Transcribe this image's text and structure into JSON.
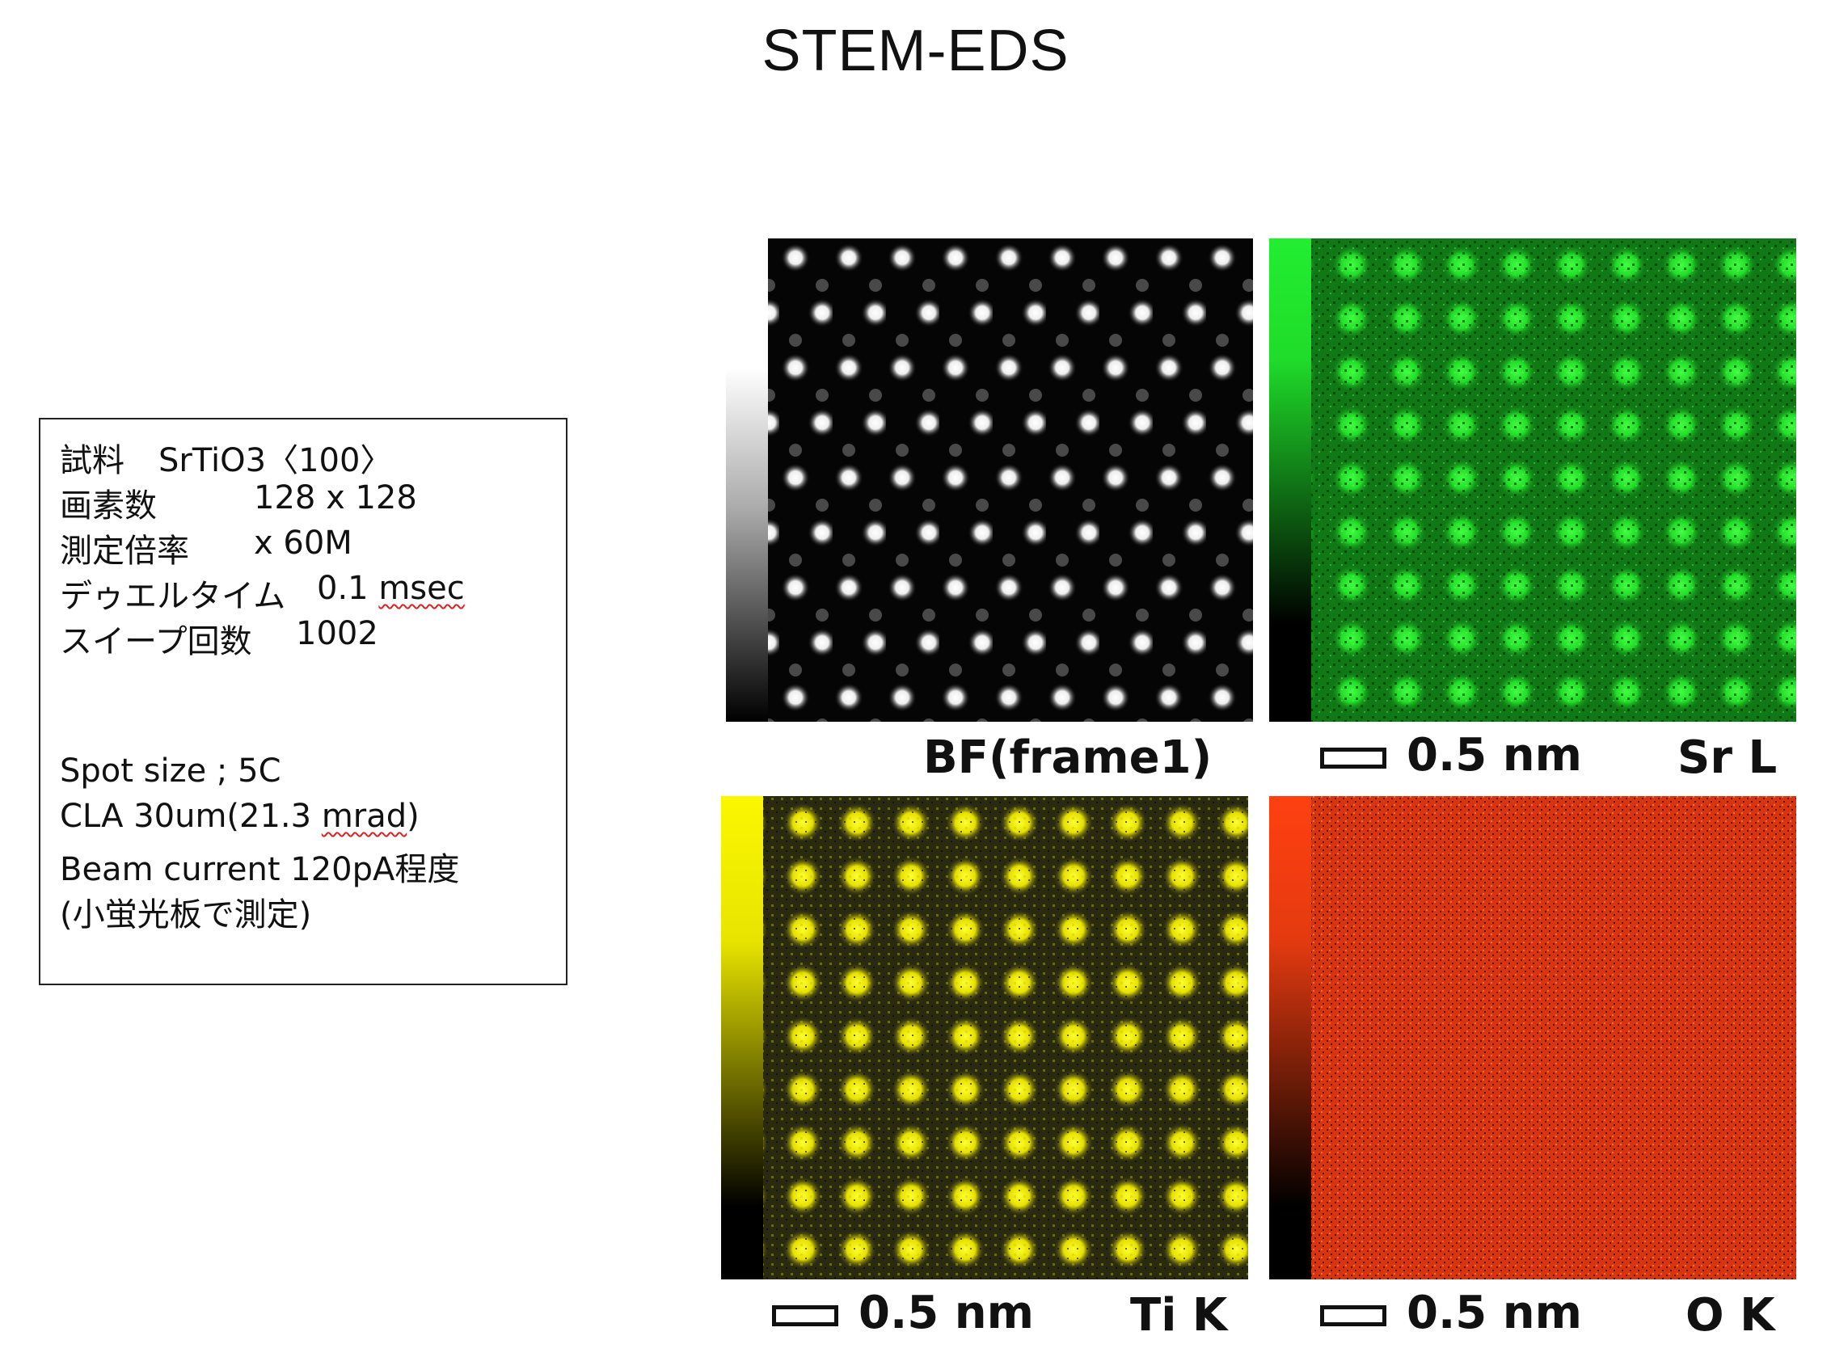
{
  "title": "STEM-EDS",
  "info": {
    "sample_label": "試料",
    "sample_value": "SrTiO3〈100〉",
    "pixels_label": "画素数",
    "pixels_value": "128 x 128",
    "mag_label": "測定倍率",
    "mag_value": "x 60M",
    "dwell_label": "デゥエルタイム",
    "dwell_value": "0.1",
    "dwell_unit": "msec",
    "sweep_label": "スイープ回数",
    "sweep_value": "1002",
    "spot_size": "Spot size ; 5C",
    "cla_prefix": "CLA  30um(21.3 ",
    "cla_unit": "mrad",
    "cla_suffix": ")",
    "beam_current": "Beam current 120pA程度",
    "beam_note": "(小蛍光板で測定)"
  },
  "panels": {
    "bf": {
      "caption": "BF(frame1)",
      "color": "#ffffff"
    },
    "sr": {
      "scale": "0.5 nm",
      "element": "Sr L",
      "color": "#22e030"
    },
    "ti": {
      "scale": "0.5 nm",
      "element": "Ti K",
      "color": "#f5f000"
    },
    "o": {
      "scale": "0.5 nm",
      "element": "O K",
      "color": "#ff3a10"
    }
  }
}
